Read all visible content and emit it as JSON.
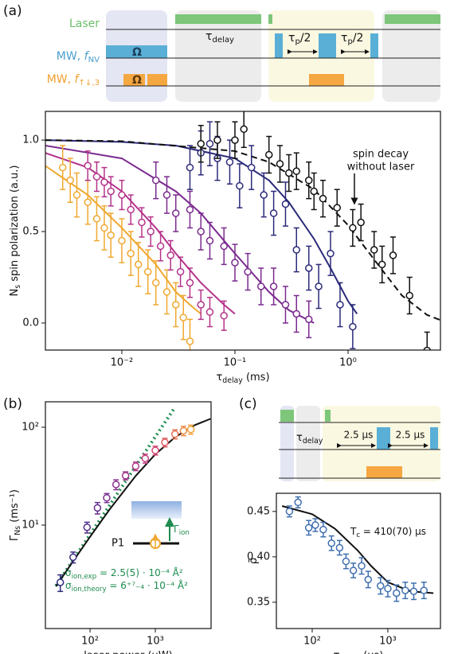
{
  "panel_labels": [
    "(a)",
    "(b)",
    "(c)"
  ],
  "sequence_a": {
    "rows": [
      {
        "text": "Laser"
      },
      {
        "text": "MW, ",
        "symbol": "f",
        "sub": "NV"
      },
      {
        "text": "MW, ",
        "symbol": "f",
        "sub": "↑↓,3"
      }
    ],
    "omega": [
      "Ω",
      "Ω"
    ],
    "delay": {
      "main": "τ",
      "sub": "delay"
    },
    "pulse": [
      {
        "main": "τ",
        "sub": "p",
        "rest": "/2"
      },
      {
        "main": "τ",
        "sub": "p",
        "rest": "/2"
      }
    ]
  },
  "sequence_c": {
    "delay": {
      "main": "τ",
      "sub": "delay"
    },
    "gaps": [
      "2.5 μs",
      "2.5 μs"
    ]
  },
  "inset_b": {
    "level": "P1",
    "rate": {
      "main": "Γ",
      "sub": "ion"
    }
  },
  "chart_data": [
    {
      "type": "scatter",
      "x_label": {
        "main": "τ",
        "sub": "delay",
        "rest": " (ms)"
      },
      "y_label": {
        "main": "N",
        "sub": "s",
        "rest": " spin polarization (a.u.)"
      },
      "xscale": "log",
      "xlim": [
        0.00211,
        6.56
      ],
      "ylim": [
        -0.148,
        1.157
      ],
      "xticks": [
        {
          "value": 0.01,
          "label": "10⁻²"
        },
        {
          "value": 0.1,
          "label": "10⁻¹"
        },
        {
          "value": 1,
          "label": "10⁰"
        }
      ],
      "yticks": [
        {
          "value": 0,
          "label": "0.0"
        },
        {
          "value": 0.5,
          "label": "0.5"
        },
        {
          "value": 1,
          "label": "1.0"
        }
      ],
      "annotation": [
        "spin decay",
        "without laser"
      ],
      "series": [
        {
          "color": "#f0a830",
          "x": [
            0.003,
            0.0035,
            0.004,
            0.005,
            0.006,
            0.007,
            0.008,
            0.01,
            0.012,
            0.014,
            0.017,
            0.02,
            0.025,
            0.03,
            0.035,
            0.04
          ],
          "values": [
            0.85,
            0.78,
            0.7,
            0.66,
            0.57,
            0.52,
            0.48,
            0.45,
            0.38,
            0.32,
            0.28,
            0.22,
            0.17,
            0.1,
            0.03,
            -0.1
          ],
          "errors": [
            0.12,
            0.12,
            0.12,
            0.12,
            0.12,
            0.12,
            0.12,
            0.12,
            0.12,
            0.12,
            0.12,
            0.12,
            0.12,
            0.12,
            0.12,
            0.12
          ]
        },
        {
          "color": "#b5338a",
          "x": [
            0.005,
            0.006,
            0.007,
            0.008,
            0.01,
            0.012,
            0.015,
            0.018,
            0.022,
            0.027,
            0.033,
            0.04,
            0.05,
            0.06,
            0.08
          ],
          "values": [
            0.86,
            0.8,
            0.77,
            0.72,
            0.7,
            0.62,
            0.55,
            0.5,
            0.42,
            0.37,
            0.28,
            0.22,
            0.1,
            0.06,
            0.04
          ],
          "errors": [
            0.08,
            0.08,
            0.08,
            0.08,
            0.08,
            0.08,
            0.08,
            0.08,
            0.08,
            0.08,
            0.08,
            0.08,
            0.08,
            0.08,
            0.08
          ]
        },
        {
          "color": "#7b2a8f",
          "x": [
            0.02,
            0.025,
            0.03,
            0.04,
            0.05,
            0.06,
            0.08,
            0.1,
            0.13,
            0.17,
            0.22,
            0.28,
            0.35,
            0.45
          ],
          "values": [
            0.78,
            0.7,
            0.6,
            0.62,
            0.5,
            0.45,
            0.42,
            0.33,
            0.28,
            0.2,
            0.2,
            0.1,
            0.05,
            0.02
          ],
          "errors": [
            0.1,
            0.1,
            0.1,
            0.1,
            0.1,
            0.1,
            0.1,
            0.1,
            0.1,
            0.1,
            0.1,
            0.1,
            0.1,
            0.1
          ]
        },
        {
          "color": "#2b2a7a",
          "x": [
            0.04,
            0.05,
            0.06,
            0.07,
            0.09,
            0.11,
            0.14,
            0.18,
            0.22,
            0.28,
            0.35,
            0.45,
            0.55,
            0.7,
            0.85,
            1.1
          ],
          "values": [
            0.85,
            0.93,
            0.98,
            0.9,
            0.88,
            0.75,
            0.85,
            0.7,
            0.6,
            0.65,
            0.4,
            0.3,
            0.2,
            0.38,
            0.1,
            -0.02
          ],
          "errors": [
            0.12,
            0.12,
            0.12,
            0.12,
            0.12,
            0.12,
            0.12,
            0.12,
            0.12,
            0.12,
            0.12,
            0.12,
            0.12,
            0.12,
            0.12,
            0.12
          ]
        },
        {
          "color": "#111111",
          "x": [
            0.05,
            0.07,
            0.1,
            0.12,
            0.2,
            0.25,
            0.3,
            0.35,
            0.45,
            0.5,
            0.6,
            0.8,
            1.1,
            1.3,
            1.7,
            2.0,
            2.5,
            3.5,
            5.0
          ],
          "values": [
            0.98,
            1.0,
            1.0,
            1.06,
            0.92,
            0.87,
            0.82,
            0.83,
            0.78,
            0.72,
            0.68,
            0.63,
            0.52,
            0.55,
            0.4,
            0.32,
            0.37,
            0.15,
            -0.15
          ],
          "errors": [
            0.1,
            0.1,
            0.1,
            0.1,
            0.1,
            0.1,
            0.1,
            0.1,
            0.1,
            0.1,
            0.1,
            0.1,
            0.1,
            0.1,
            0.1,
            0.1,
            0.1,
            0.1,
            0.1
          ]
        }
      ],
      "fits": [
        {
          "color": "#f0a830",
          "style": "solid",
          "x": [
            0.0021,
            0.005,
            0.01,
            0.02,
            0.03,
            0.04,
            0.05
          ],
          "values": [
            0.86,
            0.7,
            0.52,
            0.32,
            0.17,
            0.1,
            0.05
          ]
        },
        {
          "color": "#b5338a",
          "style": "solid",
          "x": [
            0.0021,
            0.005,
            0.01,
            0.02,
            0.03,
            0.05,
            0.08,
            0.1
          ],
          "values": [
            0.93,
            0.85,
            0.72,
            0.52,
            0.38,
            0.22,
            0.1,
            0.05
          ]
        },
        {
          "color": "#7b2a8f",
          "style": "solid",
          "x": [
            0.0021,
            0.01,
            0.03,
            0.05,
            0.1,
            0.2,
            0.3,
            0.5
          ],
          "values": [
            0.97,
            0.9,
            0.72,
            0.6,
            0.38,
            0.17,
            0.07,
            0.0
          ]
        },
        {
          "color": "#2b2a7a",
          "style": "solid",
          "x": [
            0.0021,
            0.01,
            0.03,
            0.1,
            0.2,
            0.3,
            0.5,
            0.7,
            1.0,
            1.2
          ],
          "values": [
            1.0,
            0.99,
            0.97,
            0.9,
            0.78,
            0.66,
            0.46,
            0.3,
            0.12,
            0.05
          ]
        },
        {
          "color": "#111111",
          "style": "dashed",
          "x": [
            0.0021,
            0.01,
            0.1,
            0.2,
            0.5,
            1,
            2,
            3,
            5,
            6.5
          ],
          "values": [
            1.0,
            0.994,
            0.94,
            0.88,
            0.73,
            0.535,
            0.29,
            0.15,
            0.044,
            0.017
          ]
        }
      ]
    },
    {
      "type": "scatter",
      "x_label": {
        "main": "laser power (μW)"
      },
      "y_label": {
        "main": "Γ",
        "sub": "Ns",
        "rest": " (ms⁻¹)"
      },
      "xscale": "log",
      "yscale": "log",
      "xlim": [
        20.7,
        7140
      ],
      "ylim": [
        0.877,
        182
      ],
      "xticks": [
        {
          "value": 100,
          "label": "10²"
        },
        {
          "value": 1000,
          "label": "10³"
        }
      ],
      "yticks": [
        {
          "value": 10,
          "label": "10¹"
        },
        {
          "value": 100,
          "label": "10²"
        }
      ],
      "annotation": [
        {
          "main": "σ",
          "sub": "ion,exp",
          "rest": " = 2.5(5) · 10⁻⁴ Å²"
        },
        {
          "main": "σ",
          "sub": "ion,theory",
          "rest": " = 6⁺⁷₋₄ · 10⁻⁴ Å²"
        }
      ],
      "series": [
        {
          "colors": [
            "#2b2a7a",
            "#3a2c85",
            "#4d2d8c",
            "#622e90",
            "#772f90",
            "#8b318e",
            "#9e338b",
            "#b03787",
            "#c23e7f",
            "#d24b72",
            "#de5d63",
            "#e87253",
            "#ef8a45",
            "#f2a03a"
          ],
          "x": [
            35,
            55,
            90,
            130,
            180,
            250,
            350,
            500,
            700,
            1000,
            1400,
            2000,
            2700,
            3500
          ],
          "values": [
            2.6,
            4.7,
            9.5,
            15,
            19,
            26,
            32,
            40,
            48,
            58,
            70,
            85,
            92,
            95
          ],
          "errors": [
            0.5,
            0.6,
            1.2,
            2,
            2,
            3,
            3,
            4,
            5,
            6,
            7,
            9,
            10,
            10
          ]
        }
      ],
      "fits": [
        {
          "color": "#1e8c4e",
          "style": "dotted",
          "x": [
            30,
            2000
          ],
          "values": [
            2.4,
            160
          ]
        },
        {
          "color": "#111111",
          "style": "solid",
          "x": [
            30,
            50,
            100,
            200,
            500,
            1000,
            2000,
            4000,
            7000
          ],
          "values": [
            2.36,
            3.9,
            7.6,
            14.5,
            31.8,
            52.9,
            79,
            104.9,
            122
          ]
        }
      ]
    },
    {
      "type": "scatter",
      "x_label": {
        "main": "τ",
        "sub": "delay",
        "rest": " (μs)"
      },
      "y_label": {
        "main": "ρ̄"
      },
      "xscale": "log",
      "xlim": [
        33.6,
        4960
      ],
      "ylim": [
        0.321,
        0.47
      ],
      "xticks": [
        {
          "value": 100,
          "label": "10²"
        },
        {
          "value": 1000,
          "label": "10³"
        }
      ],
      "yticks": [
        0.35,
        {
          "value": 0.4,
          "label": "0.40"
        },
        0.45
      ],
      "annotation": [
        {
          "main": "T",
          "sub": "c",
          "rest": " = 410(70) μs"
        }
      ],
      "series": [
        {
          "color": "#3f6fb0",
          "x": [
            50,
            65,
            90,
            110,
            140,
            180,
            230,
            280,
            350,
            450,
            550,
            800,
            1000,
            1300,
            1700,
            2200,
            3000
          ],
          "values": [
            0.45,
            0.46,
            0.432,
            0.435,
            0.43,
            0.415,
            0.41,
            0.395,
            0.385,
            0.39,
            0.375,
            0.368,
            0.365,
            0.36,
            0.363,
            0.362,
            0.363
          ],
          "errors": [
            0.006,
            0.006,
            0.008,
            0.007,
            0.008,
            0.008,
            0.008,
            0.008,
            0.008,
            0.009,
            0.009,
            0.009,
            0.009,
            0.009,
            0.009,
            0.009,
            0.009
          ]
        }
      ],
      "fits": [
        {
          "color": "#111111",
          "style": "solid",
          "x": [
            40,
            100,
            200,
            400,
            600,
            1000,
            2000,
            4000
          ],
          "values": [
            0.456,
            0.447,
            0.431,
            0.407,
            0.39,
            0.372,
            0.362,
            0.36
          ]
        }
      ]
    }
  ]
}
